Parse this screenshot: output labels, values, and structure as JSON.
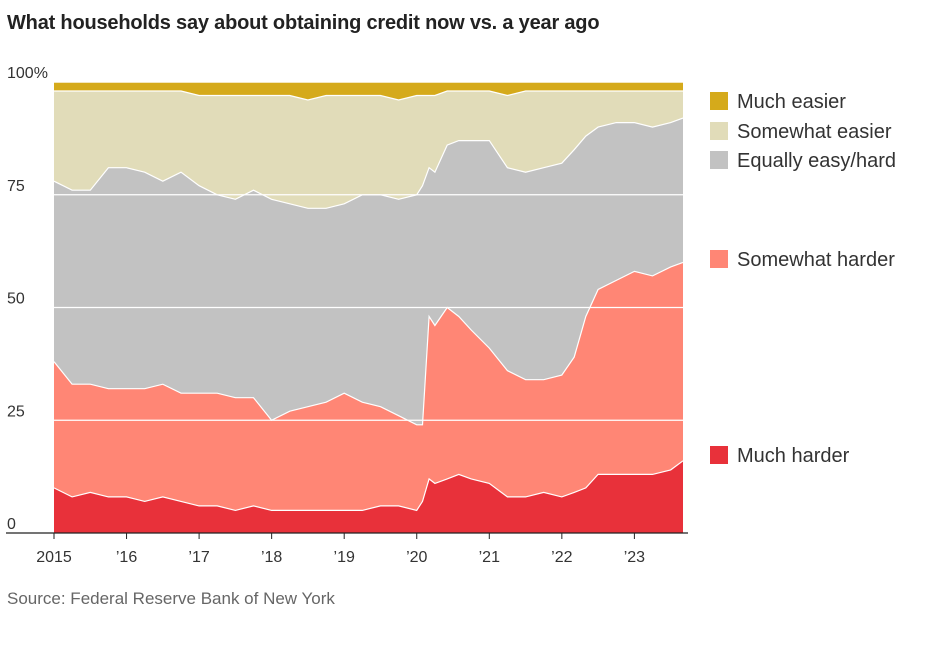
{
  "title": "What households say about obtaining credit now vs. a year ago",
  "source": "Source: Federal Reserve Bank of New York",
  "chart_data": {
    "type": "area",
    "stacked": true,
    "y_unit": "percent",
    "ylim": [
      0,
      100
    ],
    "y_ticks": [
      0,
      25,
      50,
      75,
      100
    ],
    "y_tick_labels": [
      "0",
      "25",
      "50",
      "75",
      "100%"
    ],
    "x_ticks": [
      2015,
      2016,
      2017,
      2018,
      2019,
      2020,
      2021,
      2022,
      2023
    ],
    "x_tick_labels": [
      "2015",
      "’16",
      "’17",
      "’18",
      "’19",
      "’20",
      "’21",
      "’22",
      "’23"
    ],
    "grid": true,
    "legend_position": "right",
    "x": [
      2015.0,
      2015.25,
      2015.5,
      2015.75,
      2016.0,
      2016.25,
      2016.5,
      2016.75,
      2017.0,
      2017.25,
      2017.5,
      2017.75,
      2018.0,
      2018.25,
      2018.5,
      2018.75,
      2019.0,
      2019.25,
      2019.5,
      2019.75,
      2020.0,
      2020.08,
      2020.17,
      2020.25,
      2020.42,
      2020.58,
      2020.75,
      2021.0,
      2021.25,
      2021.5,
      2021.75,
      2022.0,
      2022.17,
      2022.33,
      2022.5,
      2022.75,
      2023.0,
      2023.25,
      2023.5,
      2023.67
    ],
    "series": [
      {
        "name": "Much harder",
        "color": "#e8313a",
        "values": [
          10,
          8,
          9,
          8,
          8,
          7,
          8,
          7,
          6,
          6,
          5,
          6,
          5,
          5,
          5,
          5,
          5,
          5,
          6,
          6,
          5,
          7,
          12,
          11,
          12,
          13,
          12,
          11,
          8,
          8,
          9,
          8,
          9,
          10,
          13,
          13,
          13,
          13,
          14,
          16
        ]
      },
      {
        "name": "Somewhat harder",
        "color": "#ff8675",
        "values": [
          28,
          25,
          24,
          24,
          24,
          25,
          25,
          24,
          25,
          25,
          25,
          24,
          20,
          22,
          23,
          24,
          26,
          24,
          22,
          20,
          19,
          17,
          36,
          35,
          38,
          35,
          33,
          30,
          28,
          26,
          25,
          27,
          30,
          38,
          41,
          43,
          45,
          44,
          45,
          44
        ]
      },
      {
        "name": "Equally easy/hard",
        "color": "#c2c2c2",
        "values": [
          40,
          43,
          43,
          49,
          49,
          48,
          45,
          49,
          46,
          44,
          44,
          46,
          49,
          46,
          44,
          43,
          42,
          46,
          47,
          48,
          51,
          53,
          33,
          34,
          36,
          39,
          42,
          46,
          45,
          46,
          47,
          47,
          46,
          40,
          36,
          35,
          33,
          33,
          32,
          32
        ]
      },
      {
        "name": "Somewhat easier",
        "color": "#e1dcb9",
        "values": [
          20,
          22,
          22,
          17,
          17,
          18,
          20,
          18,
          20,
          22,
          23,
          21,
          23,
          24,
          24,
          25,
          24,
          22,
          22,
          22,
          22,
          20,
          16,
          17,
          12,
          11,
          11,
          11,
          16,
          18,
          17,
          16,
          13,
          10,
          8,
          7,
          7,
          8,
          7,
          6
        ]
      },
      {
        "name": "Much easier",
        "color": "#d5aa1b",
        "values": [
          2,
          2,
          2,
          2,
          2,
          2,
          2,
          2,
          3,
          3,
          3,
          3,
          3,
          3,
          4,
          3,
          3,
          3,
          3,
          4,
          3,
          3,
          3,
          3,
          2,
          2,
          2,
          2,
          3,
          2,
          2,
          2,
          2,
          2,
          2,
          2,
          2,
          2,
          2,
          2
        ]
      }
    ]
  }
}
